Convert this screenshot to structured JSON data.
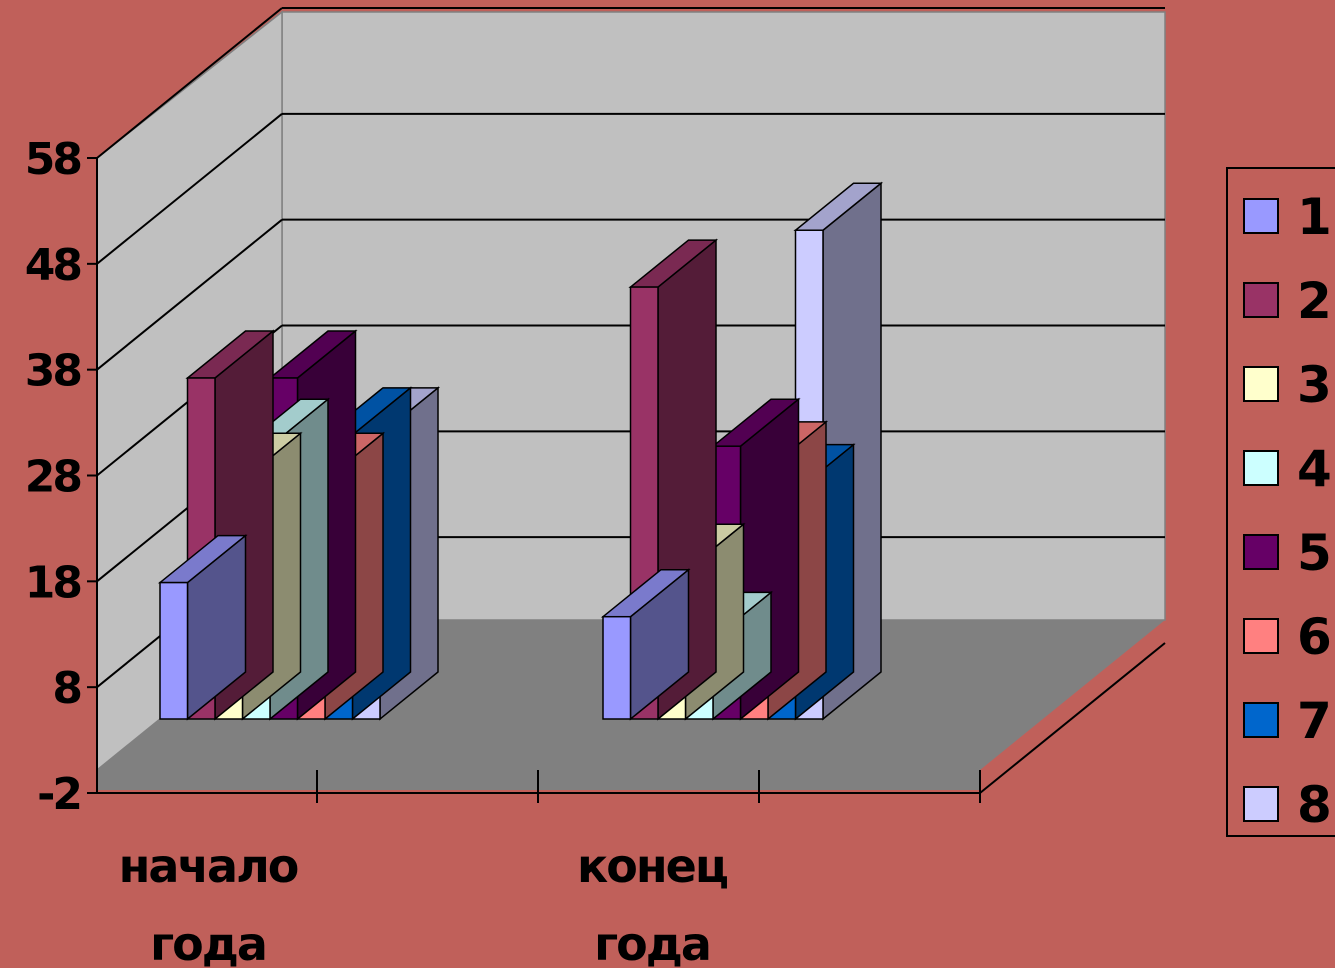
{
  "chart_data": {
    "type": "bar",
    "title": "",
    "xlabel": "",
    "ylabel": "",
    "ylim": [
      -2,
      58
    ],
    "yticks": [
      -2,
      8,
      18,
      28,
      38,
      48,
      58
    ],
    "categories": [
      {
        "line1": "начало",
        "line2": "года"
      },
      {
        "line1": "конец",
        "line2": "года"
      }
    ],
    "series": [
      {
        "name": "1",
        "color": "#9999ff",
        "values": [
          20,
          17
        ]
      },
      {
        "name": "2",
        "color": "#993366",
        "values": [
          38,
          46
        ]
      },
      {
        "name": "3",
        "color": "#ffffcc",
        "values": [
          29,
          21
        ]
      },
      {
        "name": "4",
        "color": "#ccffff",
        "values": [
          32,
          15
        ]
      },
      {
        "name": "5",
        "color": "#660066",
        "values": [
          38,
          32
        ]
      },
      {
        "name": "6",
        "color": "#ff8080",
        "values": [
          29,
          30
        ]
      },
      {
        "name": "7",
        "color": "#0066cc",
        "values": [
          33,
          28
        ]
      },
      {
        "name": "8",
        "color": "#ccccff",
        "values": [
          33,
          51
        ]
      }
    ],
    "grid": true,
    "legend": "right",
    "style": "3d-clustered-column"
  }
}
